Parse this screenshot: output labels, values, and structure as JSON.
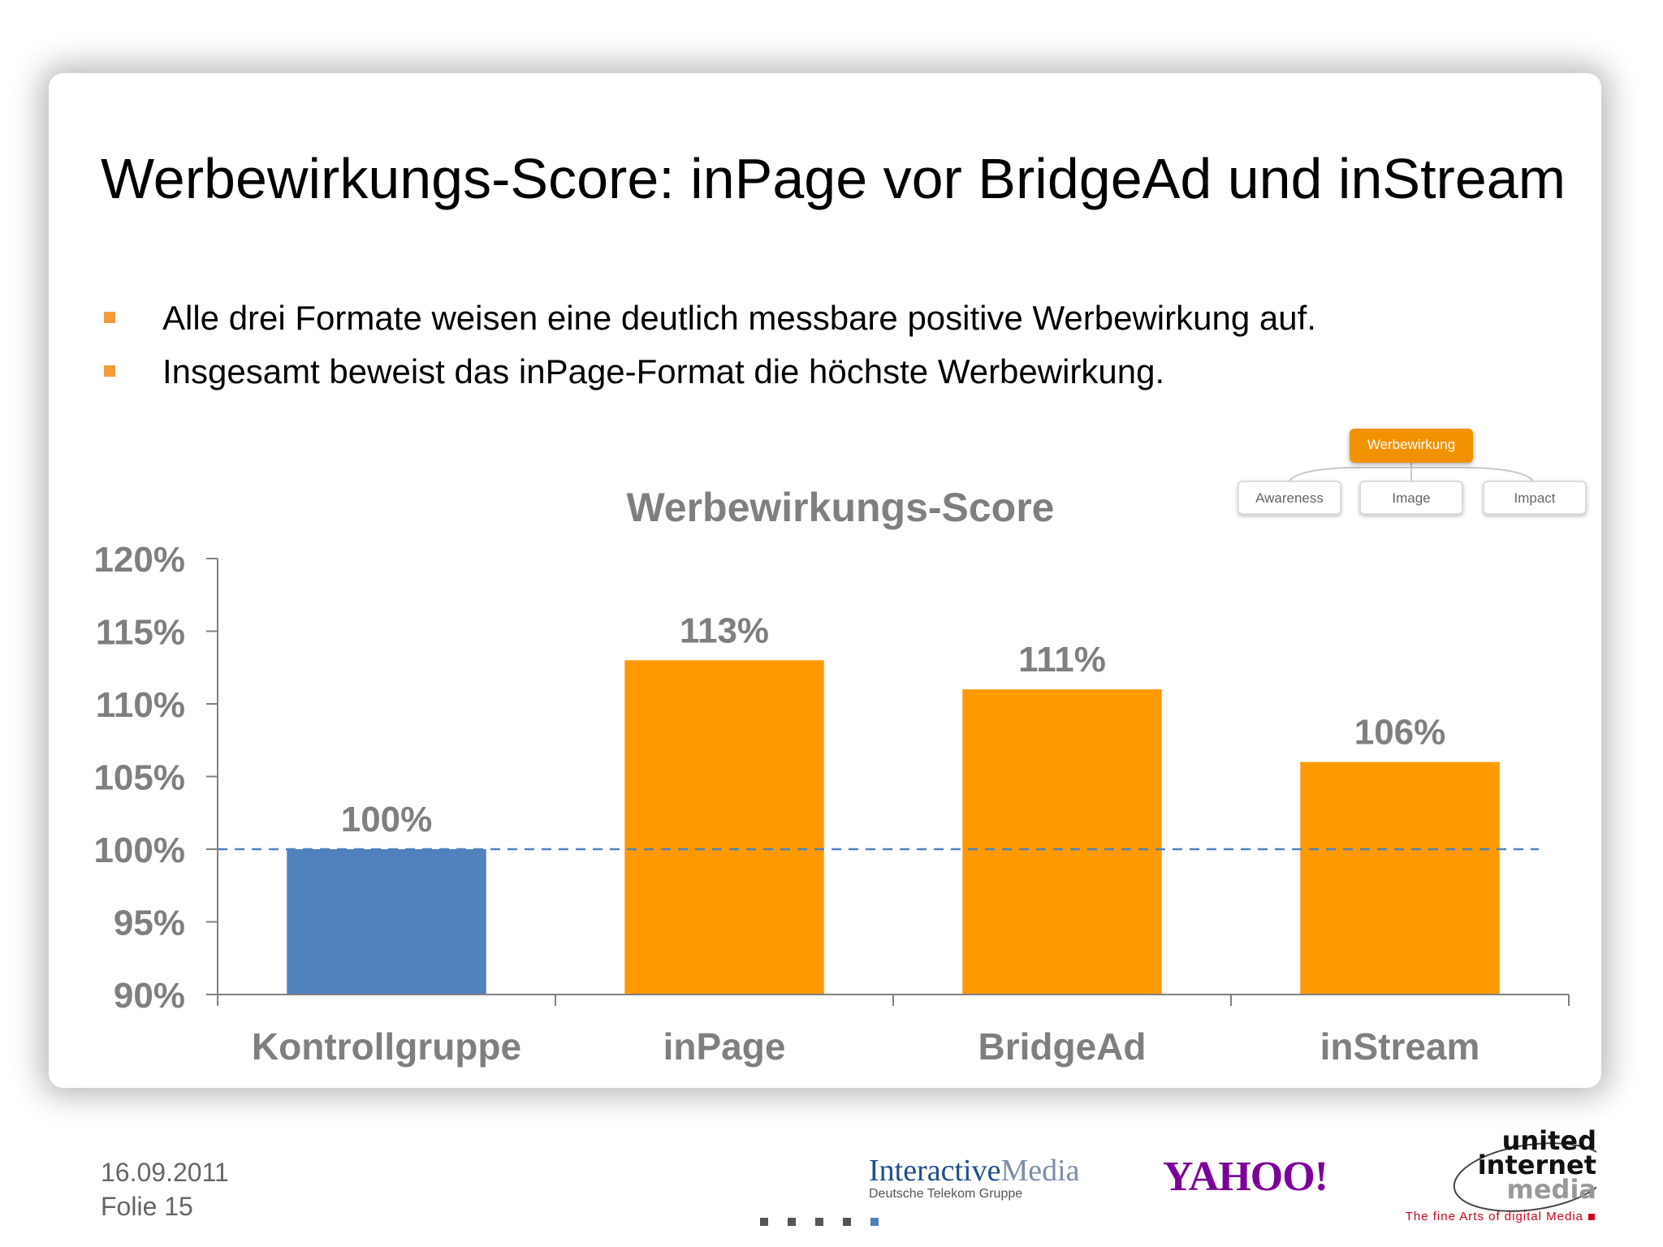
{
  "slide": {
    "title": "Werbewirkungs-Score: inPage vor BridgeAd und inStream",
    "bullets": [
      "Alle drei Formate weisen eine deutlich messbare positive Werbewirkung auf.",
      "Insgesamt beweist das inPage-Format die höchste Werbewirkung."
    ],
    "bullet_color": "#f39a3c"
  },
  "diagram": {
    "root": "Werbewirkung",
    "children": [
      "Awareness",
      "Image",
      "Impact"
    ],
    "root_color": "#f39200"
  },
  "chart_data": {
    "type": "bar",
    "title": "Werbewirkungs-Score",
    "categories": [
      "Kontrollgruppe",
      "inPage",
      "BridgeAd",
      "inStream"
    ],
    "values": [
      100,
      113,
      111,
      106
    ],
    "data_labels": [
      "100%",
      "113%",
      "111%",
      "106%"
    ],
    "bar_colors": [
      "#4f81bd",
      "#ff9900",
      "#ff9900",
      "#ff9900"
    ],
    "ylim": [
      90,
      120
    ],
    "yticks": [
      90,
      95,
      100,
      105,
      110,
      115,
      120
    ],
    "ytick_labels": [
      "90%",
      "95%",
      "100%",
      "105%",
      "110%",
      "115%",
      "120%"
    ],
    "reference_line": 100,
    "reference_line_color": "#4f81bd",
    "grid": false,
    "xlabel": "",
    "ylabel": ""
  },
  "footer": {
    "date": "16.09.2011",
    "slide_number": "Folie 15",
    "interactive_media": "Interactive",
    "interactive_media_m": "Media",
    "interactive_media_sub": "Deutsche Telekom Gruppe",
    "yahoo": "YAHOO!",
    "uim_line1": "united",
    "uim_line2": "internet",
    "uim_line3": "media",
    "uim_tagline": "The fine Arts of digital Media",
    "nav_dots": 5,
    "nav_active": 5
  }
}
